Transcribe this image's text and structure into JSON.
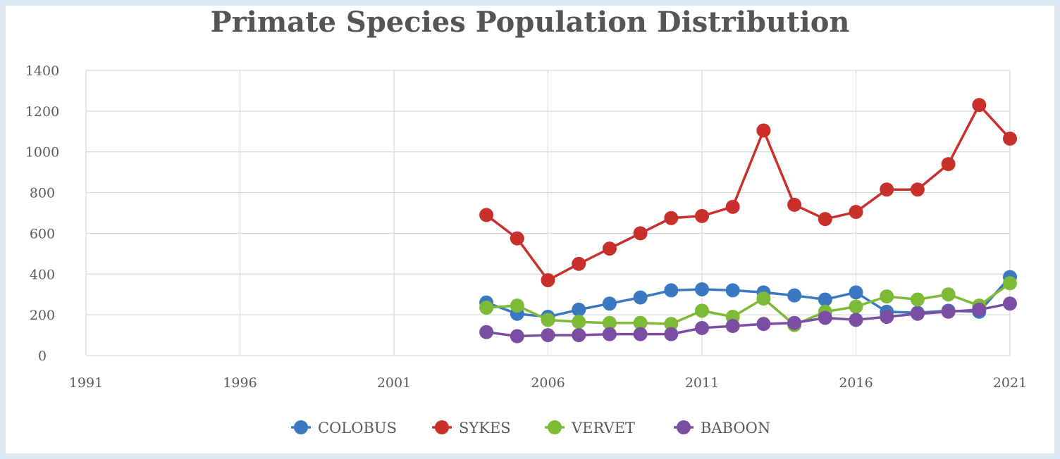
{
  "chart_data": {
    "type": "line",
    "title": "Primate Species Population Distribution",
    "xlabel": "",
    "ylabel": "",
    "xlim": [
      1991,
      2021
    ],
    "ylim": [
      0,
      1400
    ],
    "x_ticks": [
      1991,
      1996,
      2001,
      2006,
      2011,
      2016,
      2021
    ],
    "y_ticks": [
      0,
      200,
      400,
      600,
      800,
      1000,
      1200,
      1400
    ],
    "grid": true,
    "legend_position": "bottom",
    "x": [
      2004,
      2005,
      2006,
      2007,
      2008,
      2009,
      2010,
      2011,
      2012,
      2013,
      2014,
      2015,
      2016,
      2017,
      2018,
      2019,
      2020,
      2021
    ],
    "series": [
      {
        "name": "COLOBUS",
        "color": "#3a78c2",
        "values": [
          260,
          205,
          190,
          225,
          255,
          285,
          320,
          325,
          320,
          310,
          295,
          275,
          310,
          215,
          210,
          220,
          215,
          385
        ]
      },
      {
        "name": "SYKES",
        "color": "#c9302c",
        "values": [
          690,
          575,
          370,
          450,
          525,
          600,
          675,
          685,
          730,
          1105,
          740,
          670,
          705,
          815,
          815,
          940,
          1230,
          1065
        ]
      },
      {
        "name": "VERVET",
        "color": "#7dba35",
        "values": [
          235,
          245,
          175,
          165,
          160,
          160,
          155,
          220,
          190,
          280,
          150,
          215,
          240,
          290,
          275,
          300,
          245,
          355
        ]
      },
      {
        "name": "BABOON",
        "color": "#7a4ea3",
        "values": [
          115,
          95,
          100,
          100,
          105,
          105,
          105,
          135,
          145,
          155,
          160,
          185,
          175,
          190,
          205,
          215,
          225,
          255
        ]
      }
    ]
  }
}
